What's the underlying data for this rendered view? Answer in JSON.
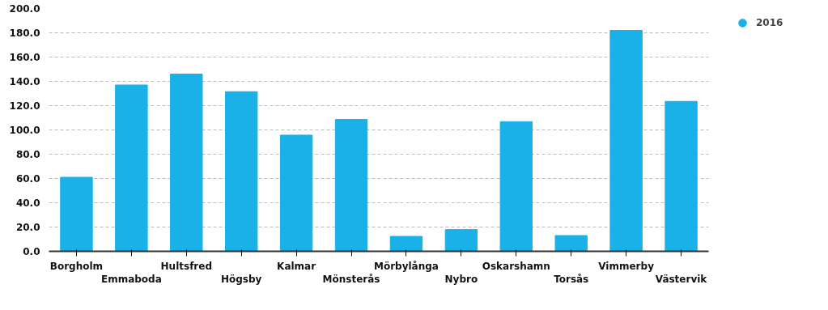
{
  "chart_data": {
    "type": "bar",
    "categories": [
      "Borgholm",
      "Emmaboda",
      "Hultsfred",
      "Högsby",
      "Kalmar",
      "Mönsterås",
      "Mörbylånga",
      "Nybro",
      "Oskarshamn",
      "Torsås",
      "Vimmerby",
      "Västervik"
    ],
    "series": [
      {
        "name": "2016",
        "color": "#1ab0e8",
        "values": [
          61,
          137,
          146,
          131.5,
          95.7,
          108.6,
          12.3,
          17.9,
          106.8,
          13,
          182,
          123.5
        ]
      }
    ],
    "ylim": [
      0,
      200
    ],
    "yticks": [
      {
        "value": 0,
        "label": "0.0"
      },
      {
        "value": 20,
        "label": "20.0"
      },
      {
        "value": 40,
        "label": "40.0"
      },
      {
        "value": 60,
        "label": "60.0"
      },
      {
        "value": 80,
        "label": "80.0"
      },
      {
        "value": 100,
        "label": "100.0"
      },
      {
        "value": 120,
        "label": "120.0"
      },
      {
        "value": 140,
        "label": "140.0"
      },
      {
        "value": 160,
        "label": "160.0"
      },
      {
        "value": 180,
        "label": "180.0"
      },
      {
        "value": 200,
        "label": "200.0"
      }
    ],
    "grid": "y",
    "legend": "top right"
  }
}
